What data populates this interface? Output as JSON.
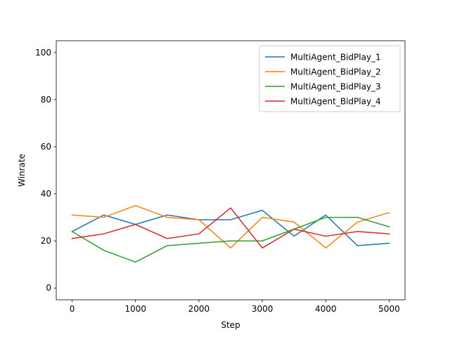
{
  "chart_data": {
    "type": "line",
    "xlabel": "Step",
    "ylabel": "Winrate",
    "xlim": [
      -250,
      5250
    ],
    "ylim": [
      -5,
      105
    ],
    "xticks": [
      0,
      1000,
      2000,
      3000,
      4000,
      5000
    ],
    "yticks": [
      0,
      20,
      40,
      60,
      80,
      100
    ],
    "grid": false,
    "legend_position": "top-right",
    "x": [
      0,
      500,
      1000,
      1500,
      2000,
      2500,
      3000,
      3500,
      4000,
      4500,
      5000
    ],
    "series": [
      {
        "name": "MultiAgent_BidPlay_1",
        "color": "#1f77b4",
        "values": [
          24,
          31,
          27,
          31,
          29,
          29,
          33,
          22,
          31,
          18,
          19
        ]
      },
      {
        "name": "MultiAgent_BidPlay_2",
        "color": "#ff7f0e",
        "values": [
          31,
          30,
          35,
          30,
          29,
          17,
          30,
          28,
          17,
          28,
          32
        ]
      },
      {
        "name": "MultiAgent_BidPlay_3",
        "color": "#2ca02c",
        "values": [
          24,
          16,
          11,
          18,
          19,
          20,
          20,
          25,
          30,
          30,
          26
        ]
      },
      {
        "name": "MultiAgent_BidPlay_4",
        "color": "#d62728",
        "values": [
          21,
          23,
          27,
          21,
          23,
          34,
          17,
          25,
          22,
          24,
          23
        ]
      }
    ]
  }
}
